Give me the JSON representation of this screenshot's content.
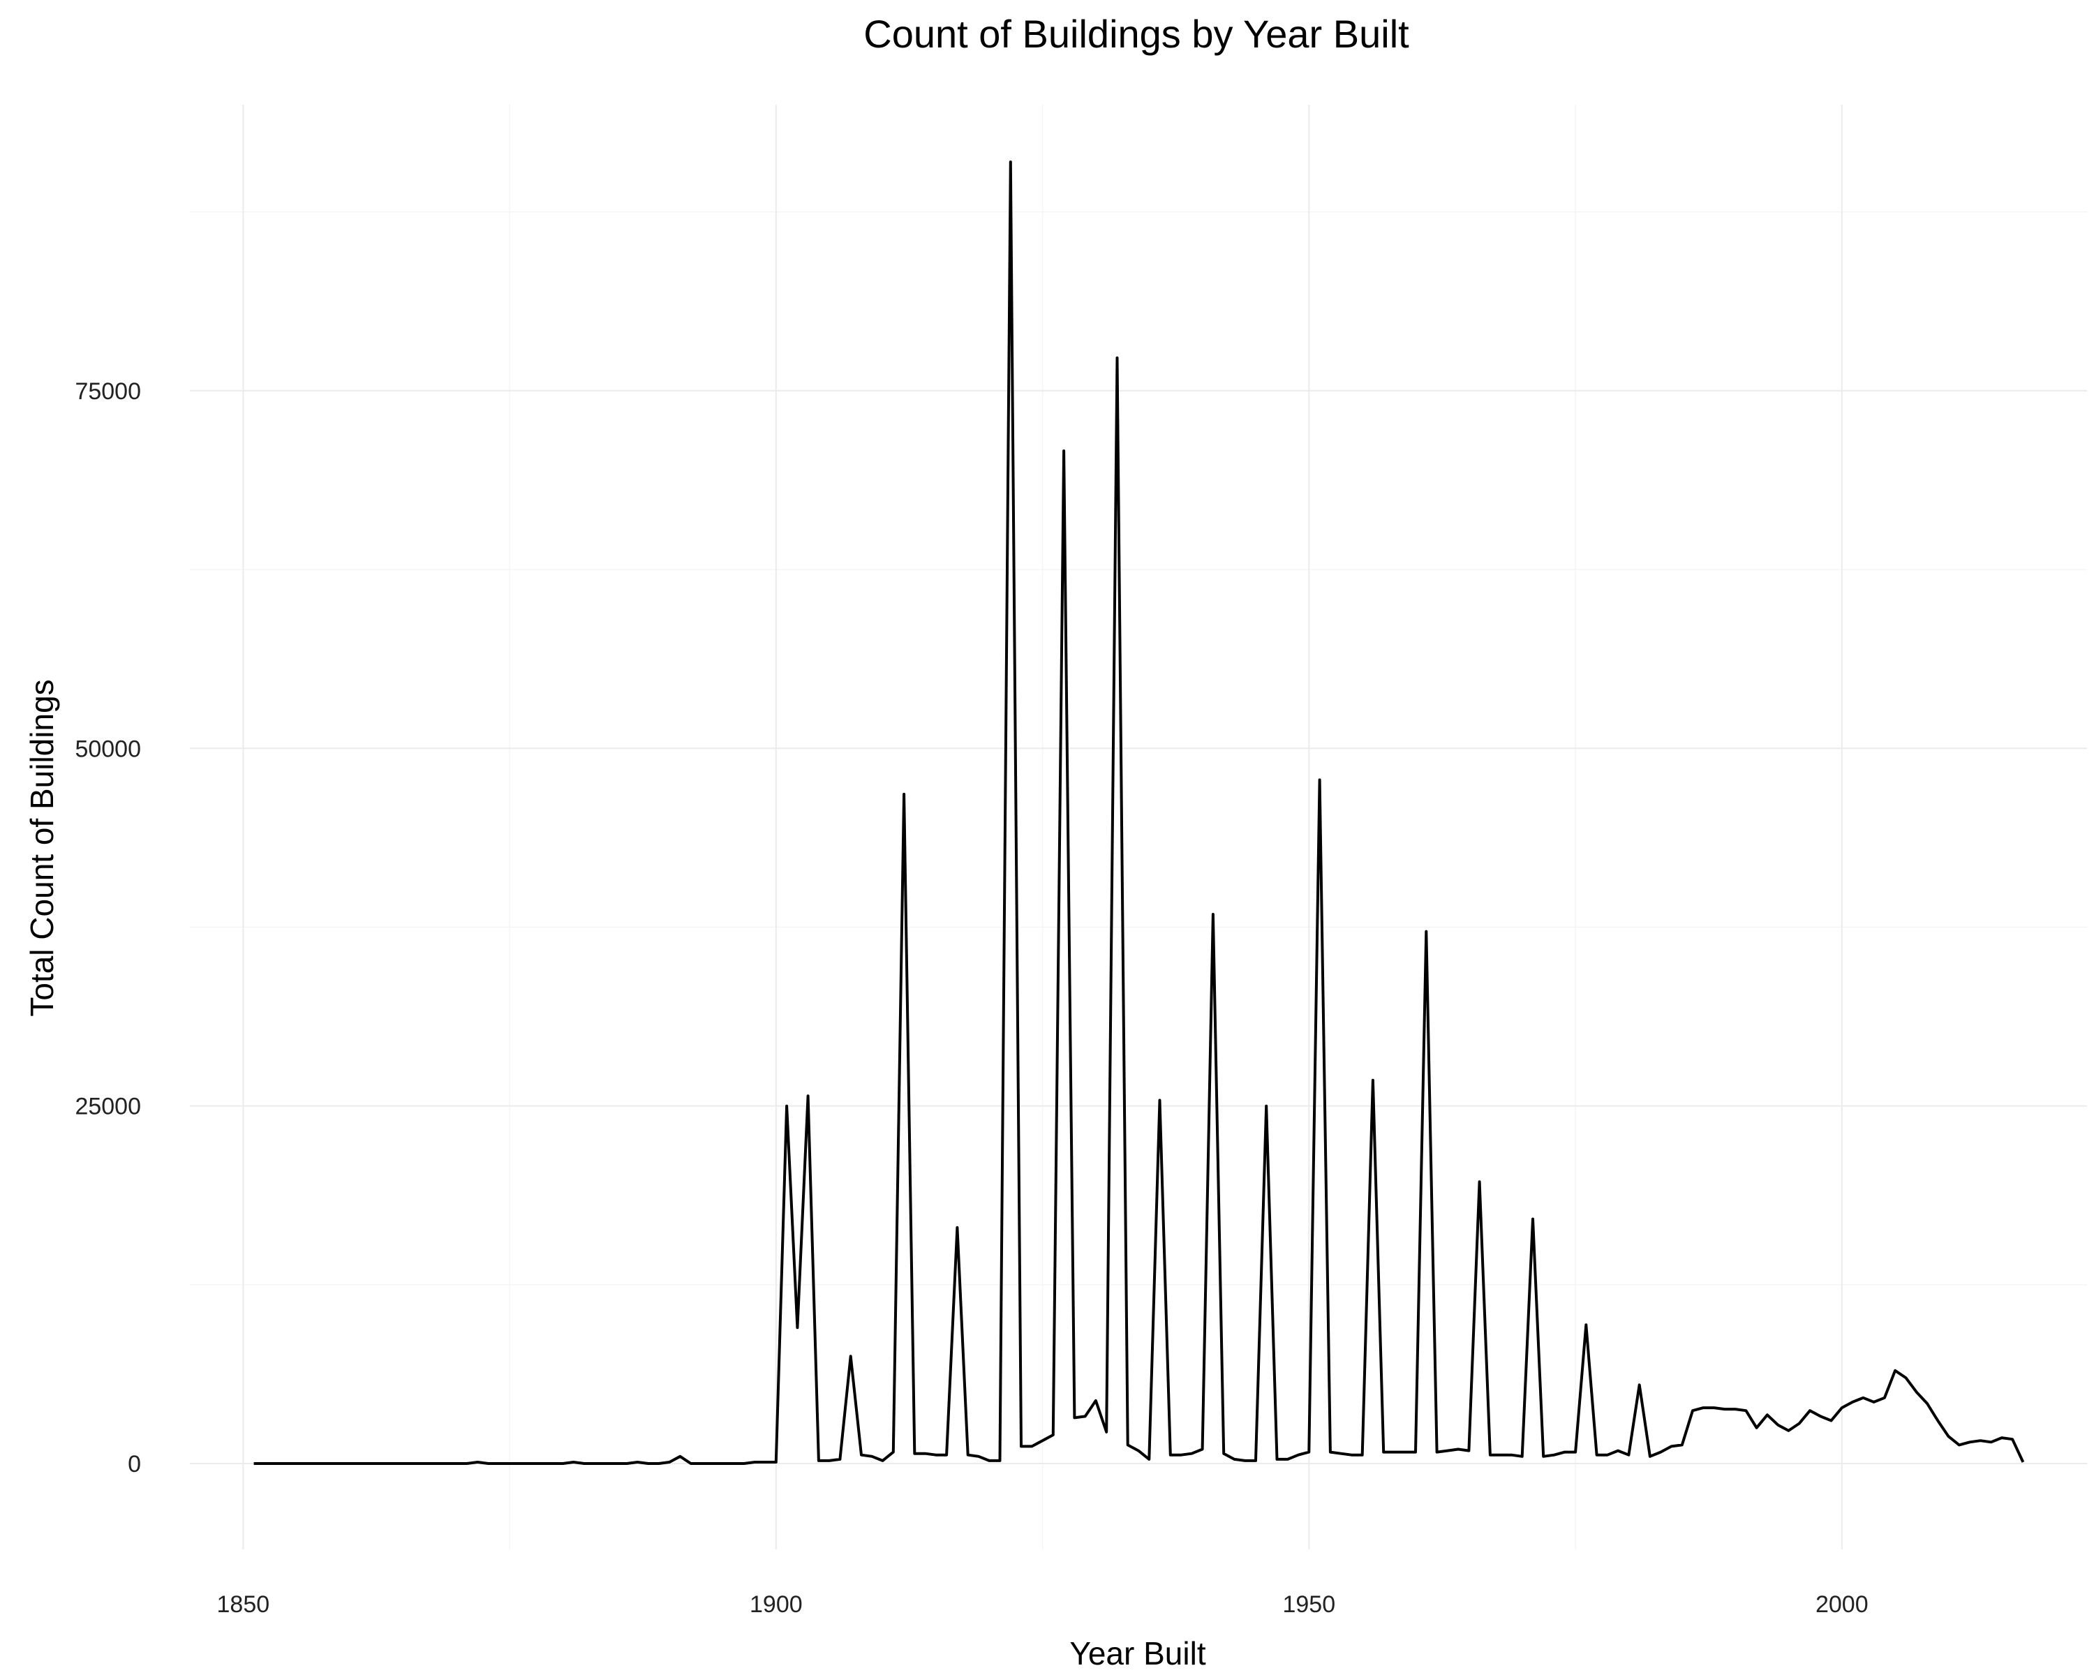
{
  "chart_data": {
    "type": "line",
    "title": "Count of Buildings by Year Built",
    "xlabel": "Year Built",
    "ylabel": "Total Count of Buildings",
    "xlim": [
      1845,
      2023
    ],
    "ylim": [
      -6000,
      95000
    ],
    "x_ticks": [
      1850,
      1900,
      1950,
      2000
    ],
    "x_tick_labels": [
      "1850",
      "1900",
      "1950",
      "2000"
    ],
    "y_ticks": [
      0,
      25000,
      50000,
      75000
    ],
    "y_tick_labels": [
      "0",
      "25000",
      "50000",
      "75000"
    ],
    "grid": true,
    "legend": "none",
    "series_color": "#000000",
    "x": [
      1851,
      1852,
      1853,
      1854,
      1855,
      1856,
      1857,
      1858,
      1859,
      1860,
      1861,
      1862,
      1863,
      1864,
      1865,
      1866,
      1867,
      1868,
      1869,
      1870,
      1871,
      1872,
      1873,
      1874,
      1875,
      1876,
      1877,
      1878,
      1879,
      1880,
      1881,
      1882,
      1883,
      1884,
      1885,
      1886,
      1887,
      1888,
      1889,
      1890,
      1891,
      1892,
      1893,
      1894,
      1895,
      1896,
      1897,
      1898,
      1899,
      1900,
      1901,
      1902,
      1903,
      1904,
      1905,
      1906,
      1907,
      1908,
      1909,
      1910,
      1911,
      1912,
      1913,
      1914,
      1915,
      1916,
      1917,
      1918,
      1919,
      1920,
      1921,
      1922,
      1923,
      1924,
      1925,
      1926,
      1927,
      1928,
      1929,
      1930,
      1931,
      1932,
      1933,
      1934,
      1935,
      1936,
      1937,
      1938,
      1939,
      1940,
      1941,
      1942,
      1943,
      1944,
      1945,
      1946,
      1947,
      1948,
      1949,
      1950,
      1951,
      1952,
      1953,
      1954,
      1955,
      1956,
      1957,
      1958,
      1959,
      1960,
      1961,
      1962,
      1963,
      1964,
      1965,
      1966,
      1967,
      1968,
      1969,
      1970,
      1971,
      1972,
      1973,
      1974,
      1975,
      1976,
      1977,
      1978,
      1979,
      1980,
      1981,
      1982,
      1983,
      1984,
      1985,
      1986,
      1987,
      1988,
      1989,
      1990,
      1991,
      1992,
      1993,
      1994,
      1995,
      1996,
      1997,
      1998,
      1999,
      2000,
      2001,
      2002,
      2003,
      2004,
      2005,
      2006,
      2007,
      2008,
      2009,
      2010,
      2011,
      2012,
      2013,
      2014,
      2015,
      2016,
      2017
    ],
    "values": [
      0,
      0,
      0,
      0,
      0,
      0,
      0,
      0,
      0,
      0,
      0,
      0,
      0,
      0,
      0,
      0,
      0,
      0,
      0,
      0,
      0,
      100,
      0,
      0,
      0,
      0,
      0,
      0,
      0,
      0,
      100,
      0,
      0,
      0,
      0,
      0,
      100,
      0,
      0,
      100,
      500,
      0,
      0,
      0,
      0,
      0,
      0,
      100,
      100,
      100,
      25000,
      9500,
      25700,
      200,
      200,
      300,
      7500,
      600,
      500,
      200,
      800,
      46800,
      700,
      700,
      600,
      600,
      16500,
      600,
      500,
      200,
      200,
      91000,
      1200,
      1200,
      1600,
      2000,
      70800,
      3200,
      3300,
      4400,
      2200,
      77300,
      1300,
      900,
      300,
      25400,
      600,
      600,
      700,
      1000,
      38400,
      700,
      300,
      200,
      200,
      25000,
      300,
      300,
      600,
      800,
      47800,
      800,
      700,
      600,
      600,
      26800,
      800,
      800,
      800,
      800,
      37200,
      800,
      900,
      1000,
      900,
      19700,
      600,
      600,
      600,
      500,
      17100,
      500,
      600,
      800,
      800,
      9700,
      600,
      600,
      900,
      600,
      5500,
      500,
      800,
      1200,
      1300,
      3700,
      3900,
      3900,
      3800,
      3800,
      3700,
      2500,
      3400,
      2700,
      2300,
      2800,
      3700,
      3300,
      3000,
      3900,
      4300,
      4600,
      4300,
      4600,
      6500,
      6000,
      5000,
      4200,
      3000,
      1900,
      1300,
      1500,
      1600,
      1500,
      1800,
      1700,
      100
    ]
  }
}
